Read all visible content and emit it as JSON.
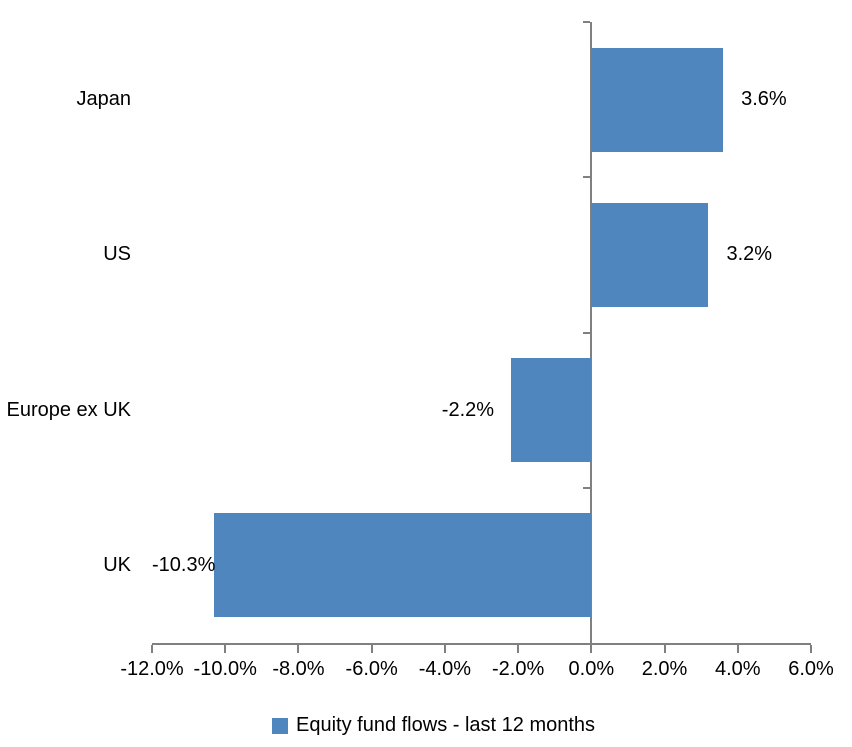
{
  "chart_data": {
    "type": "bar",
    "orientation": "horizontal",
    "categories": [
      "Japan",
      "US",
      "Europe ex UK",
      "UK"
    ],
    "series": [
      {
        "name": "Equity fund flows - last 12 months",
        "values": [
          3.6,
          3.2,
          -2.2,
          -10.3
        ],
        "labels": [
          "3.6%",
          "3.2%",
          "-2.2%",
          "-10.3%"
        ],
        "color": "#4F86BE"
      }
    ],
    "xlim": [
      -12,
      6
    ],
    "x_tick_step": 2,
    "x_tick_labels": [
      "-12.0%",
      "-10.0%",
      "-8.0%",
      "-6.0%",
      "-4.0%",
      "-2.0%",
      "0.0%",
      "2.0%",
      "4.0%",
      "6.0%"
    ],
    "grid": false,
    "data_label_position": "outside-end",
    "legend_position": "bottom",
    "axis_color": "#808080",
    "text_color": "#000000",
    "background": "#FFFFFF"
  },
  "legend": {
    "marker_icon": "square-icon"
  }
}
